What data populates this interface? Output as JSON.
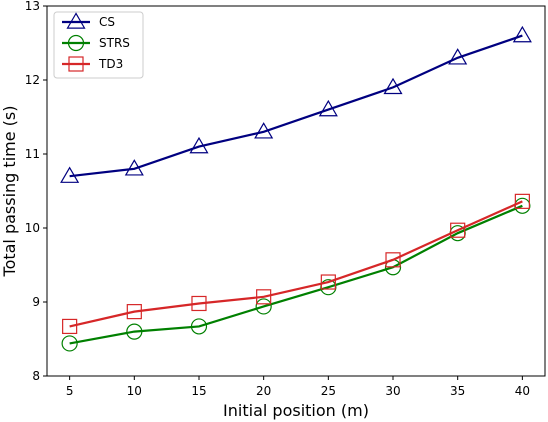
{
  "chart_data": {
    "type": "line",
    "title": "",
    "xlabel": "Initial position (m)",
    "ylabel": "Total passing time (s)",
    "x": [
      5,
      10,
      15,
      20,
      25,
      30,
      35,
      40
    ],
    "xlim": [
      3.25,
      41.75
    ],
    "ylim": [
      8,
      13
    ],
    "xticks": [
      5,
      10,
      15,
      20,
      25,
      30,
      35,
      40
    ],
    "yticks": [
      8,
      9,
      10,
      11,
      12,
      13
    ],
    "grid": false,
    "legend": "top-left",
    "series": [
      {
        "name": "CS",
        "color": "#000080",
        "marker": "triangle",
        "values": [
          10.7,
          10.8,
          11.1,
          11.3,
          11.6,
          11.9,
          12.3,
          12.6
        ]
      },
      {
        "name": "STRS",
        "color": "#008000",
        "marker": "circle",
        "values": [
          8.44,
          8.6,
          8.67,
          8.94,
          9.2,
          9.47,
          9.93,
          10.3
        ]
      },
      {
        "name": "TD3",
        "color": "#d62728",
        "marker": "square",
        "values": [
          8.67,
          8.87,
          8.98,
          9.07,
          9.27,
          9.57,
          9.97,
          10.36
        ]
      }
    ]
  }
}
